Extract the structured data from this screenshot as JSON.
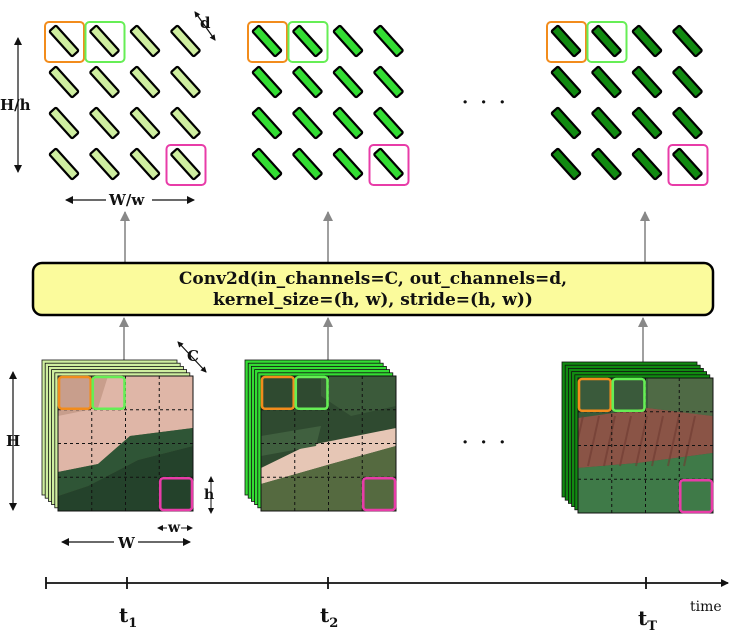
{
  "colors": {
    "stage1": "#cfeea0",
    "stage2": "#33dd33",
    "stage3": "#118a11",
    "highlight_orange": "#f28c1c",
    "highlight_green": "#66ee55",
    "highlight_magenta": "#e83ca8",
    "box_fill": "#fbfb9c",
    "arrow_gray": "#888888"
  },
  "labels": {
    "d": "d",
    "Hh": "H/h",
    "Ww": "W/w",
    "C": "C",
    "H": "H",
    "W": "W",
    "h": "h",
    "w": "w",
    "ellipsis": "· · ·",
    "time": "time"
  },
  "conv": {
    "line1": "Conv2d(in_channels=C, out_channels=d,",
    "line2": "kernel_size=(h, w), stride=(h, w))"
  },
  "timesteps": [
    {
      "base": "t",
      "sub": "1"
    },
    {
      "base": "t",
      "sub": "2"
    },
    {
      "base": "t",
      "sub": "T"
    }
  ]
}
